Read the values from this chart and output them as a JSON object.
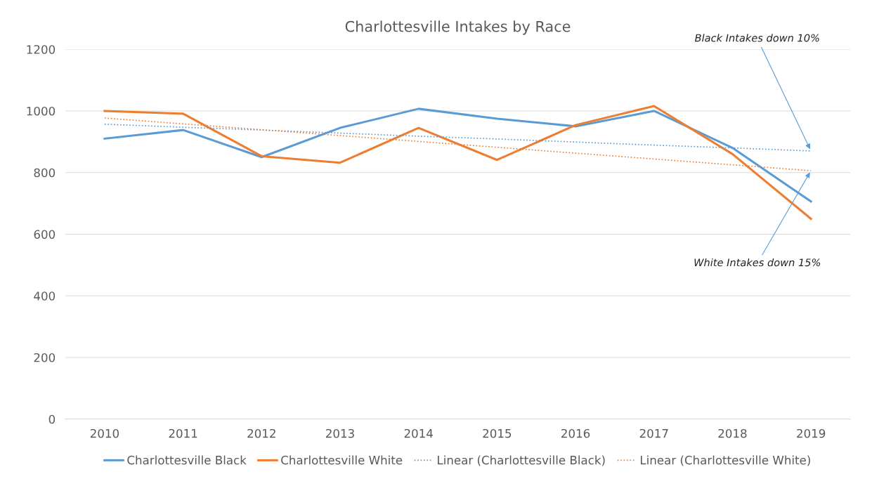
{
  "chart_data": {
    "type": "line",
    "title": "Charlottesville Intakes by Race",
    "x": [
      2010,
      2011,
      2012,
      2013,
      2014,
      2015,
      2016,
      2017,
      2018,
      2019
    ],
    "xlim": [
      2009.5,
      2019.5
    ],
    "xticks": [
      2010,
      2011,
      2012,
      2013,
      2014,
      2015,
      2016,
      2017,
      2018,
      2019
    ],
    "ylim": [
      0,
      1200
    ],
    "yticks": [
      0,
      200,
      400,
      600,
      800,
      1000,
      1200
    ],
    "grid": "y",
    "legend": "bottom",
    "series": [
      {
        "name": "Charlottesville Black",
        "color": "#5b9bd5",
        "values": [
          910,
          938,
          850,
          945,
          1007,
          975,
          950,
          1000,
          880,
          706
        ]
      },
      {
        "name": "Charlottesville White",
        "color": "#ed7d31",
        "values": [
          1000,
          991,
          853,
          832,
          945,
          841,
          954,
          1016,
          860,
          650
        ]
      },
      {
        "name": "Linear (Charlottesville Black)",
        "color": "#5b9bd5",
        "line_style": "dotted",
        "values": [
          957,
          947,
          938,
          928,
          918,
          909,
          899,
          889,
          880,
          870
        ]
      },
      {
        "name": "Linear (Charlottesville White)",
        "color": "#ed7d31",
        "line_style": "dotted",
        "values": [
          977,
          958,
          939,
          920,
          901,
          882,
          863,
          844,
          825,
          806
        ]
      }
    ],
    "annotations": [
      {
        "text": "Black Intakes down 10%",
        "x": 2019,
        "y": 870
      },
      {
        "text": "White Intakes down 15%",
        "x": 2019,
        "y": 806
      }
    ]
  }
}
